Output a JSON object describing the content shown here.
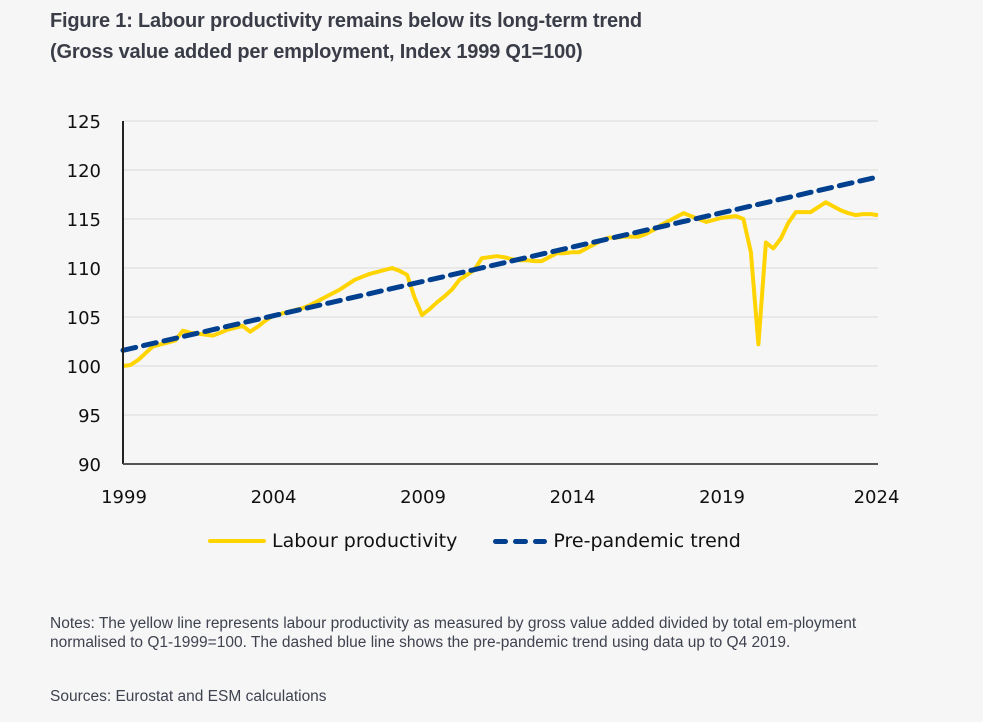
{
  "title_line1": "Figure 1: Labour productivity remains below its long-term trend",
  "title_line2": "(Gross value added per employment, Index 1999 Q1=100)",
  "notes": "Notes: The yellow line represents labour productivity as measured by gross value added divided by total em-ployment normalised to Q1-1999=100. The dashed blue line shows the pre-pandemic trend using data up to Q4 2019.",
  "sources": "Sources: Eurostat and ESM calculations",
  "colors": {
    "productivity": "#ffd400",
    "trend": "#00408f",
    "grid": "#d9d9d9",
    "axis": "#333333"
  },
  "chart_data": {
    "type": "line",
    "title": "Figure 1: Labour productivity remains below its long-term trend",
    "subtitle": "(Gross value added per employment, Index 1999 Q1=100)",
    "xlabel": "",
    "ylabel": "",
    "xlim": [
      1999.0,
      2024.25
    ],
    "ylim": [
      90,
      125
    ],
    "yticks": [
      90,
      95,
      100,
      105,
      110,
      115,
      120,
      125
    ],
    "xticks": [
      1999,
      2004,
      2009,
      2014,
      2019,
      2024
    ],
    "xtick_labels": [
      "1999",
      "2004",
      "2009",
      "2014",
      "2019",
      "2024"
    ],
    "grid": "horizontal",
    "legend": "bottom",
    "x_start": "1999 Q1",
    "x_step": "quarter",
    "series": [
      {
        "name": "Labour productivity",
        "style": "solid",
        "values": [
          100.0,
          100.1,
          100.6,
          101.3,
          102.0,
          102.2,
          102.4,
          102.6,
          103.6,
          103.4,
          103.3,
          103.2,
          103.1,
          103.4,
          103.7,
          103.9,
          104.1,
          103.5,
          104.0,
          104.6,
          105.1,
          105.3,
          105.5,
          105.7,
          105.9,
          106.2,
          106.6,
          107.0,
          107.4,
          107.8,
          108.3,
          108.8,
          109.1,
          109.4,
          109.6,
          109.8,
          110.0,
          109.7,
          109.3,
          107.0,
          105.2,
          105.8,
          106.5,
          107.1,
          107.8,
          108.8,
          109.3,
          109.8,
          111.0,
          111.1,
          111.2,
          111.1,
          110.9,
          110.8,
          110.8,
          110.7,
          110.7,
          111.1,
          111.5,
          111.5,
          111.6,
          111.6,
          112.0,
          112.4,
          112.8,
          113.1,
          113.1,
          113.2,
          113.2,
          113.2,
          113.5,
          113.9,
          114.4,
          114.8,
          115.2,
          115.6,
          115.3,
          115.0,
          114.7,
          114.9,
          115.1,
          115.2,
          115.3,
          115.0,
          111.6,
          102.2,
          112.6,
          112.0,
          113.0,
          114.6,
          115.7,
          115.7,
          115.7,
          116.2,
          116.7,
          116.3,
          115.9,
          115.6,
          115.4,
          115.5,
          115.5,
          115.4
        ]
      },
      {
        "name": "Pre-pandemic trend",
        "style": "dashed",
        "start": 101.6,
        "end": 119.3
      }
    ]
  }
}
